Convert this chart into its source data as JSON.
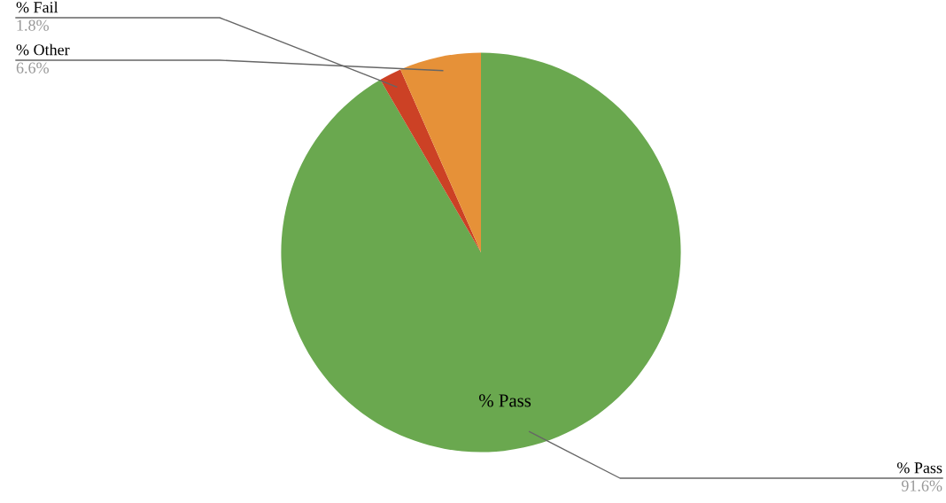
{
  "chart_data": {
    "type": "pie",
    "categories": [
      "% Pass",
      "% Fail",
      "% Other"
    ],
    "values": [
      91.6,
      1.8,
      6.6
    ],
    "colors": [
      "#6aa84f",
      "#cc4125",
      "#e69138"
    ],
    "value_labels": [
      "91.6%",
      "1.8%",
      "6.6%"
    ],
    "annotations": [
      "% Pass"
    ],
    "legend": false
  }
}
